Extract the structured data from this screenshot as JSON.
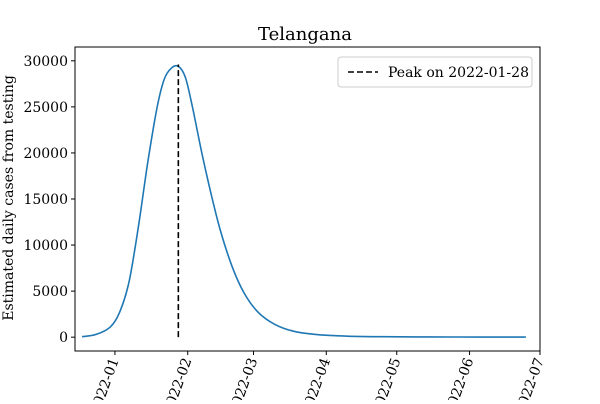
{
  "chart_data": {
    "type": "line",
    "title": "Telangana",
    "xlabel": "",
    "ylabel": "Estimated daily cases from testing",
    "x_axis_kind": "date",
    "xlim": [
      "2021-12-15",
      "2022-07-01"
    ],
    "ylim": [
      -1500,
      31500
    ],
    "x_tick_labels": [
      {
        "date": "2022-01-01",
        "label": "2022-01"
      },
      {
        "date": "2022-02-01",
        "label": "2022-02"
      },
      {
        "date": "2022-03-01",
        "label": "2022-03"
      },
      {
        "date": "2022-04-01",
        "label": "2022-04"
      },
      {
        "date": "2022-05-01",
        "label": "2022-05"
      },
      {
        "date": "2022-06-01",
        "label": "2022-06"
      },
      {
        "date": "2022-07-01",
        "label": "2022-07"
      }
    ],
    "y_ticks": [
      0,
      5000,
      10000,
      15000,
      20000,
      25000,
      30000
    ],
    "y_tick_labels": [
      "0",
      "5000",
      "10000",
      "15000",
      "20000",
      "25000",
      "30000"
    ],
    "series": [
      {
        "color": "#1f77b4",
        "points": [
          {
            "x": "2021-12-18",
            "y": 50
          },
          {
            "x": "2021-12-24",
            "y": 300
          },
          {
            "x": "2021-12-30",
            "y": 1100
          },
          {
            "x": "2022-01-03",
            "y": 2700
          },
          {
            "x": "2022-01-07",
            "y": 6000
          },
          {
            "x": "2022-01-11",
            "y": 12000
          },
          {
            "x": "2022-01-15",
            "y": 19000
          },
          {
            "x": "2022-01-19",
            "y": 25000
          },
          {
            "x": "2022-01-22",
            "y": 28000
          },
          {
            "x": "2022-01-25",
            "y": 29200
          },
          {
            "x": "2022-01-28",
            "y": 29400
          },
          {
            "x": "2022-01-31",
            "y": 28200
          },
          {
            "x": "2022-02-03",
            "y": 25000
          },
          {
            "x": "2022-02-07",
            "y": 20000
          },
          {
            "x": "2022-02-11",
            "y": 15500
          },
          {
            "x": "2022-02-15",
            "y": 11500
          },
          {
            "x": "2022-02-20",
            "y": 7600
          },
          {
            "x": "2022-02-25",
            "y": 4800
          },
          {
            "x": "2022-03-03",
            "y": 2700
          },
          {
            "x": "2022-03-10",
            "y": 1400
          },
          {
            "x": "2022-03-18",
            "y": 650
          },
          {
            "x": "2022-03-28",
            "y": 280
          },
          {
            "x": "2022-04-10",
            "y": 110
          },
          {
            "x": "2022-04-25",
            "y": 50
          },
          {
            "x": "2022-05-15",
            "y": 25
          },
          {
            "x": "2022-06-05",
            "y": 15
          },
          {
            "x": "2022-06-25",
            "y": 10
          }
        ]
      }
    ],
    "peak": {
      "date": "2022-01-28",
      "y_top": 29600,
      "label": "Peak on 2022-01-28",
      "style": "dashed",
      "color": "#000000"
    },
    "legend": {
      "position": "top-right",
      "entries": [
        "Peak on 2022-01-28"
      ]
    },
    "grid": false
  }
}
